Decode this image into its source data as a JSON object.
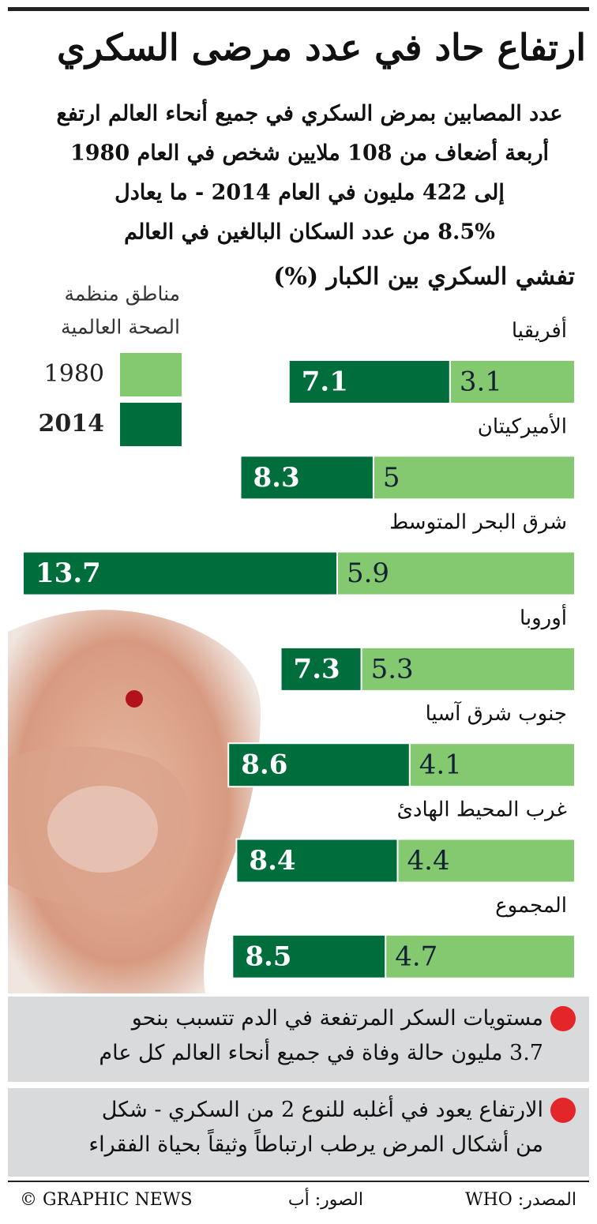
{
  "header": {
    "title": "ارتفاع حاد في عدد مرضى السكري",
    "subtitle_lines": [
      "عدد المصابين بمرض السكري في جميع أنحاء العالم ارتفع",
      "أربعة أضعاف من 108 ملايين شخص في العام 1980",
      "إلى 422 مليون في العام 2014 - ما يعادل",
      "8.5% من عدد السكان البالغين في العالم"
    ]
  },
  "chart_data": {
    "type": "bar",
    "orientation": "horizontal",
    "overlap": true,
    "title": "تفشي السكري بين الكبار (%)",
    "legend_title": [
      "مناطق منظمة",
      "الصحة العالمية"
    ],
    "categories": [
      "أفريقيا",
      "الأميركيتان",
      "شرق البحر المتوسط",
      "أوروبا",
      "جنوب شرق آسيا",
      "غرب المحيط الهادئ",
      "المجموع"
    ],
    "series": [
      {
        "name": "1980",
        "color": "#84c870",
        "values": [
          3.1,
          5,
          5.9,
          5.3,
          4.1,
          4.4,
          4.7
        ]
      },
      {
        "name": "2014",
        "color": "#006e3c",
        "values": [
          7.1,
          8.3,
          13.7,
          7.3,
          8.6,
          8.4,
          8.5
        ]
      }
    ]
  },
  "notes": [
    "مستويات السكر المرتفعة في الدم تتسبب بنحو|3.7 مليون حالة وفاة في جميع أنحاء العالم كل عام",
    "الارتفاع يعود في أغلبه للنوع 2 من السكري - شكل|من أشكال المرض يرطب ارتباطاً وثيقاً بحياة الفقراء"
  ],
  "footer": {
    "source": "المصدر: WHO",
    "photos": "الصور: أب",
    "credit": "© GRAPHIC NEWS"
  }
}
